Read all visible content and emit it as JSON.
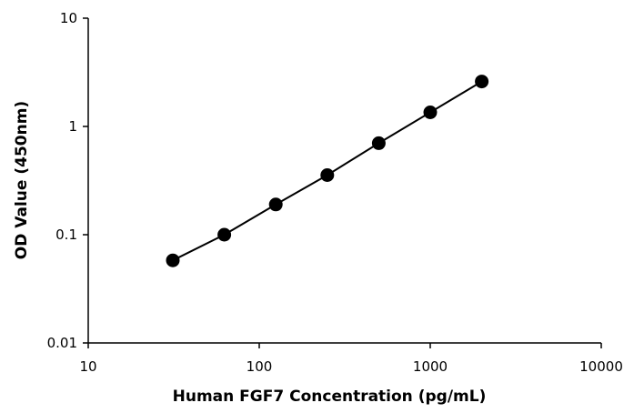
{
  "chart_data": {
    "type": "scatter",
    "xlabel": "Human FGF7 Concentration (pg/mL)",
    "ylabel": "OD Value (450nm)",
    "xscale": "log",
    "yscale": "log",
    "xlim": [
      10,
      10000
    ],
    "ylim": [
      0.01,
      10
    ],
    "x_ticks": [
      "10",
      "100",
      "1000",
      "10000"
    ],
    "y_ticks": [
      "0.01",
      "0.1",
      "1",
      "10"
    ],
    "grid": false,
    "legend": "none",
    "marker_color": "#000000",
    "line_color": "#000000",
    "series": [
      {
        "x": [
          31.25,
          62.5,
          125,
          250,
          500,
          1000,
          2000
        ],
        "y": [
          0.058,
          0.1,
          0.19,
          0.355,
          0.7,
          1.35,
          2.6
        ]
      }
    ]
  }
}
